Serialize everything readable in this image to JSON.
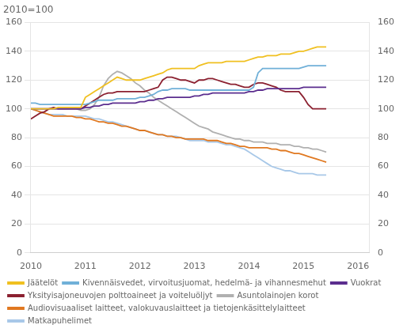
{
  "chart_data": {
    "type": "line",
    "title": "2010=100",
    "x": [
      2010,
      2010.0833333333333,
      2010.1666666666667,
      2010.25,
      2010.3333333333333,
      2010.4166666666667,
      2010.5,
      2010.5833333333333,
      2010.6666666666667,
      2010.75,
      2010.8333333333333,
      2010.9166666666667,
      2011,
      2011.0833333333333,
      2011.1666666666667,
      2011.25,
      2011.3333333333333,
      2011.4166666666667,
      2011.5,
      2011.5833333333333,
      2011.6666666666667,
      2011.75,
      2011.8333333333333,
      2011.9166666666667,
      2012,
      2012.0833333333333,
      2012.1666666666667,
      2012.25,
      2012.3333333333333,
      2012.4166666666667,
      2012.5,
      2012.5833333333333,
      2012.6666666666667,
      2012.75,
      2012.8333333333333,
      2012.9166666666667,
      2013,
      2013.0833333333333,
      2013.1666666666667,
      2013.25,
      2013.3333333333333,
      2013.4166666666667,
      2013.5,
      2013.5833333333333,
      2013.6666666666667,
      2013.75,
      2013.8333333333333,
      2013.9166666666667,
      2014,
      2014.0833333333333,
      2014.1666666666667,
      2014.25,
      2014.3333333333333,
      2014.4166666666667,
      2014.5,
      2014.5833333333333,
      2014.6666666666667,
      2014.75,
      2014.8333333333333,
      2014.9166666666667,
      2015,
      2015.0833333333333,
      2015.1666666666667,
      2015.25,
      2015.3333333333333,
      2015.4166666666667
    ],
    "xlim": [
      2010.0,
      2016.2
    ],
    "xticks": [
      2010,
      2011,
      2012,
      2013,
      2014,
      2015,
      2016
    ],
    "ylim": [
      0,
      160
    ],
    "yticks": [
      0,
      20,
      40,
      60,
      80,
      100,
      120,
      140,
      160
    ],
    "y2lim": [
      0,
      160
    ],
    "y2ticks": [
      0,
      20,
      40,
      60,
      80,
      100,
      120,
      140,
      160
    ],
    "grid": "y",
    "legend": "bottom",
    "series": [
      {
        "name": "Jäätelöt",
        "color": "#F0C020",
        "values": [
          100,
          100,
          100,
          100,
          100,
          100,
          101,
          101,
          101,
          101,
          101,
          101,
          108,
          110,
          112,
          114,
          116,
          118,
          120,
          122,
          121,
          120,
          120,
          120,
          120,
          121,
          122,
          123,
          124,
          125,
          127,
          128,
          128,
          128,
          128,
          128,
          128,
          130,
          131,
          132,
          132,
          132,
          132,
          133,
          133,
          133,
          133,
          133,
          134,
          135,
          136,
          136,
          137,
          137,
          137,
          138,
          138,
          138,
          139,
          140,
          140,
          141,
          142,
          143,
          143,
          143
        ]
      },
      {
        "name": "Kivennäisvedet, virvoitusjuomat, hedelmä- ja vihannesmehut",
        "color": "#70B0D8",
        "values": [
          104,
          104,
          103,
          103,
          103,
          103,
          103,
          103,
          103,
          103,
          103,
          103,
          103,
          104,
          105,
          106,
          106,
          106,
          106,
          107,
          107,
          107,
          107,
          107,
          108,
          108,
          109,
          110,
          112,
          113,
          113,
          114,
          114,
          114,
          114,
          113,
          113,
          113,
          113,
          113,
          113,
          113,
          113,
          113,
          113,
          113,
          113,
          113,
          113,
          115,
          125,
          128,
          128,
          128,
          128,
          128,
          128,
          128,
          128,
          128,
          129,
          130,
          130,
          130,
          130,
          130
        ]
      },
      {
        "name": "Vuokrat",
        "color": "#5B2D8E",
        "values": [
          100,
          100,
          100,
          100,
          100,
          100,
          100,
          100,
          100,
          100,
          100,
          100,
          101,
          101,
          102,
          102,
          103,
          103,
          104,
          104,
          104,
          104,
          104,
          104,
          105,
          105,
          106,
          106,
          107,
          107,
          108,
          108,
          108,
          108,
          108,
          108,
          109,
          109,
          110,
          110,
          111,
          111,
          111,
          111,
          111,
          111,
          111,
          111,
          112,
          112,
          113,
          113,
          114,
          114,
          114,
          114,
          114,
          114,
          114,
          114,
          115,
          115,
          115,
          115,
          115,
          115
        ]
      },
      {
        "name": "Yksityisajoneuvojen polttoaineet ja voiteluöljyt",
        "color": "#8B2030",
        "values": [
          93,
          95,
          97,
          98,
          100,
          101,
          100,
          100,
          100,
          100,
          100,
          100,
          102,
          104,
          106,
          108,
          110,
          111,
          111,
          112,
          112,
          112,
          112,
          112,
          112,
          112,
          113,
          114,
          115,
          120,
          122,
          122,
          121,
          120,
          120,
          119,
          118,
          120,
          120,
          121,
          121,
          120,
          119,
          118,
          117,
          117,
          116,
          115,
          115,
          117,
          118,
          118,
          117,
          116,
          115,
          113,
          112,
          112,
          112,
          112,
          108,
          103,
          100,
          100,
          100,
          100
        ]
      },
      {
        "name": "Asuntolainojen korot",
        "color": "#B0B0B0",
        "values": [
          100,
          100,
          100,
          100,
          100,
          100,
          100,
          100,
          100,
          100,
          100,
          99,
          99,
          100,
          103,
          108,
          116,
          121,
          124,
          126,
          125,
          123,
          121,
          118,
          116,
          113,
          111,
          108,
          106,
          104,
          102,
          100,
          98,
          96,
          94,
          92,
          90,
          88,
          87,
          86,
          84,
          83,
          82,
          81,
          80,
          79,
          79,
          78,
          78,
          77,
          77,
          77,
          76,
          76,
          76,
          75,
          75,
          75,
          74,
          74,
          73,
          73,
          72,
          72,
          71,
          70
        ]
      },
      {
        "name": "Audiovisuaaliset laitteet, valokuvauslaitteet ja tietojenkäsittelylaitteet",
        "color": "#E07820",
        "values": [
          100,
          99,
          98,
          97,
          96,
          95,
          95,
          95,
          95,
          95,
          94,
          94,
          93,
          93,
          92,
          91,
          91,
          90,
          90,
          89,
          88,
          88,
          87,
          86,
          85,
          85,
          84,
          83,
          82,
          82,
          81,
          81,
          80,
          80,
          79,
          79,
          79,
          79,
          79,
          78,
          78,
          78,
          77,
          76,
          76,
          75,
          74,
          74,
          73,
          73,
          73,
          73,
          73,
          72,
          72,
          71,
          71,
          70,
          69,
          69,
          68,
          67,
          66,
          65,
          64,
          63
        ]
      },
      {
        "name": "Matkapuhelimet",
        "color": "#A8C8E8",
        "values": [
          100,
          99,
          98,
          97,
          96,
          96,
          96,
          96,
          95,
          95,
          95,
          95,
          95,
          94,
          93,
          93,
          92,
          91,
          91,
          90,
          89,
          88,
          87,
          86,
          85,
          85,
          84,
          83,
          82,
          82,
          81,
          81,
          81,
          80,
          79,
          78,
          78,
          78,
          78,
          77,
          77,
          77,
          76,
          75,
          75,
          74,
          73,
          72,
          70,
          68,
          66,
          64,
          62,
          60,
          59,
          58,
          57,
          57,
          56,
          55,
          55,
          55,
          55,
          54,
          54,
          54
        ]
      }
    ]
  }
}
